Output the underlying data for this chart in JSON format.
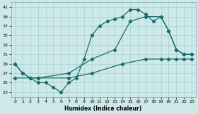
{
  "title": "",
  "xlabel": "Humidex (Indice chaleur)",
  "background_color": "#cde8e8",
  "grid_color": "#aacfcf",
  "line_color": "#1a6b6b",
  "xlim": [
    -0.5,
    23.5
  ],
  "ylim": [
    22,
    42
  ],
  "yticks": [
    23,
    25,
    27,
    29,
    31,
    33,
    35,
    37,
    39,
    41
  ],
  "xticks": [
    0,
    1,
    2,
    3,
    4,
    5,
    6,
    7,
    8,
    9,
    10,
    11,
    12,
    13,
    14,
    15,
    16,
    17,
    18,
    19,
    20,
    21,
    22,
    23
  ],
  "line1_x": [
    0,
    1,
    2,
    3,
    4,
    5,
    6,
    7,
    8,
    9,
    10,
    11,
    12,
    13,
    14,
    15,
    16,
    17,
    18,
    19,
    20,
    21,
    22,
    23
  ],
  "line1_y": [
    29,
    27,
    26,
    25,
    25,
    24,
    23,
    25,
    26,
    30,
    35,
    37,
    38,
    38.5,
    39,
    40.5,
    40.5,
    39.5,
    38,
    39,
    36,
    32,
    31,
    31
  ],
  "line2_x": [
    0,
    1,
    2,
    3,
    7,
    10,
    13,
    15,
    17,
    19,
    20,
    21,
    22,
    23
  ],
  "line2_y": [
    29,
    27,
    26,
    26,
    27,
    30,
    32,
    38,
    39,
    39,
    36,
    32,
    31,
    31
  ],
  "line3_x": [
    0,
    3,
    7,
    10,
    14,
    17,
    19,
    20,
    21,
    22,
    23
  ],
  "line3_y": [
    26,
    26,
    26,
    27,
    29,
    30,
    30,
    30,
    30,
    30,
    30
  ]
}
